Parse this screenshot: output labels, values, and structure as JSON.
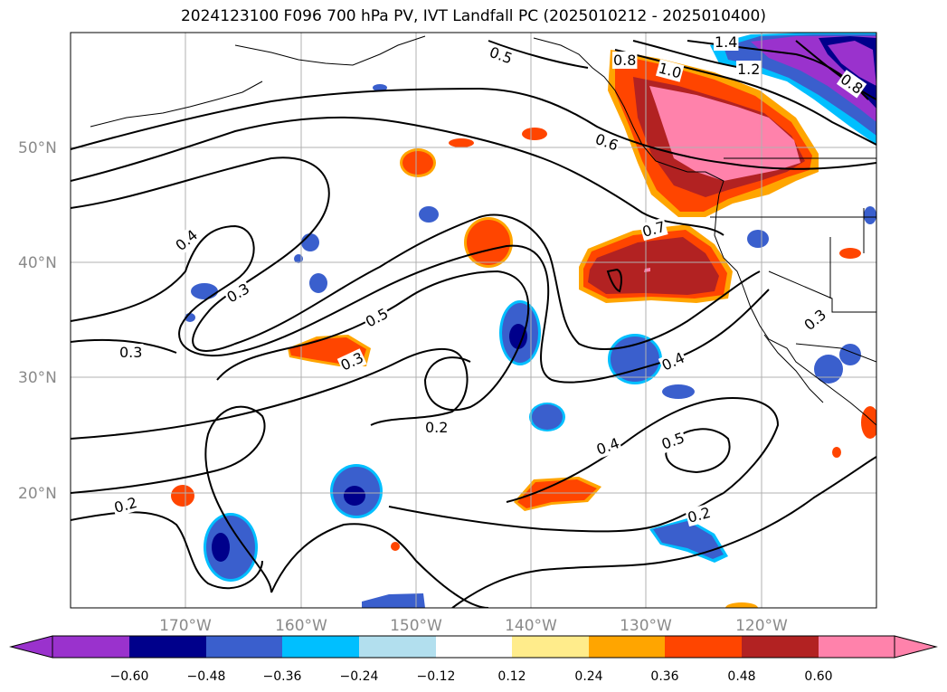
{
  "title": "2024123100 F096 700 hPa PV, IVT Landfall PC (2025010212 - 2025010400)",
  "lat_labels": [
    "50°N",
    "40°N",
    "30°N",
    "20°N"
  ],
  "lon_labels": [
    "170°W",
    "160°W",
    "150°W",
    "140°W",
    "130°W",
    "120°W"
  ],
  "contour_labels": [
    "0.5",
    "0.8",
    "1.0",
    "1.4",
    "1.2",
    "0.8",
    "0.6",
    "0.4",
    "0.3",
    "0.3",
    "0.5",
    "0.3",
    "0.7",
    "0.3",
    "0.4",
    "0.2",
    "0.4",
    "0.5",
    "0.2",
    "0.2"
  ],
  "colorbar": {
    "ticks": [
      "−0.60",
      "−0.48",
      "−0.36",
      "−0.24",
      "−0.12",
      "0.12",
      "0.24",
      "0.36",
      "0.48",
      "0.60"
    ],
    "colors": [
      "#9a32cd",
      "#00008b",
      "#3a5fcd",
      "#00bfff",
      "#b2dfee",
      "#ffffff",
      "#ffec8b",
      "#ffa500",
      "#ff4500",
      "#b22222",
      "#ff82ab"
    ]
  }
}
